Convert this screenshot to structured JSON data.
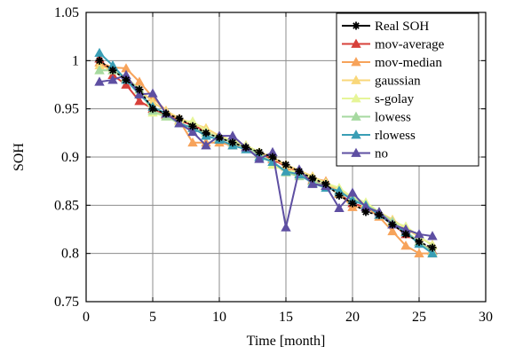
{
  "chart_data": {
    "type": "line",
    "title": "",
    "xlabel": "Time [month]",
    "ylabel": "SOH",
    "xlim": [
      0,
      30
    ],
    "ylim": [
      0.75,
      1.05
    ],
    "xticks": [
      0,
      5,
      10,
      15,
      20,
      25,
      30
    ],
    "yticks": [
      0.75,
      0.8,
      0.85,
      0.9,
      0.95,
      1,
      1.05
    ],
    "xtick_labels": [
      "0",
      "5",
      "10",
      "15",
      "20",
      "25",
      "30"
    ],
    "ytick_labels": [
      "0.75",
      "0.8",
      "0.85",
      "0.9",
      "0.95",
      "1",
      "1.05"
    ],
    "grid": true,
    "legend_position": "top-right",
    "x": [
      1,
      2,
      3,
      4,
      5,
      6,
      7,
      8,
      9,
      10,
      11,
      12,
      13,
      14,
      15,
      16,
      17,
      18,
      19,
      20,
      21,
      22,
      23,
      24,
      25,
      26
    ],
    "series": [
      {
        "name": "Real SOH",
        "color": "#000000",
        "marker": "star",
        "values": [
          1.0,
          0.99,
          0.98,
          0.97,
          0.95,
          0.945,
          0.94,
          0.932,
          0.925,
          0.92,
          0.915,
          0.91,
          0.905,
          0.9,
          0.892,
          0.885,
          0.878,
          0.872,
          0.86,
          0.852,
          0.843,
          0.84,
          0.83,
          0.82,
          0.812,
          0.806
        ]
      },
      {
        "name": "mov-average",
        "color": "#d7403a",
        "marker": "triangle",
        "values": [
          1.002,
          0.985,
          0.975,
          0.958,
          0.95,
          0.944,
          0.938,
          0.933,
          0.927,
          0.92,
          0.915,
          0.91,
          0.903,
          0.898,
          0.89,
          0.885,
          0.876,
          0.87,
          0.862,
          0.852,
          0.848,
          0.84,
          0.83,
          0.82,
          0.812,
          0.803
        ]
      },
      {
        "name": "mov-median",
        "color": "#f7a35a",
        "marker": "triangle",
        "values": [
          0.998,
          0.993,
          0.992,
          0.978,
          0.962,
          0.948,
          0.938,
          0.915,
          0.915,
          0.915,
          0.912,
          0.912,
          0.905,
          0.9,
          0.89,
          0.884,
          0.878,
          0.875,
          0.862,
          0.848,
          0.848,
          0.838,
          0.823,
          0.808,
          0.8,
          0.8
        ]
      },
      {
        "name": "gaussian",
        "color": "#f9d77a",
        "marker": "triangle",
        "values": [
          0.995,
          0.99,
          0.983,
          0.97,
          0.957,
          0.948,
          0.94,
          0.935,
          0.93,
          0.922,
          0.917,
          0.912,
          0.905,
          0.9,
          0.892,
          0.886,
          0.88,
          0.873,
          0.866,
          0.858,
          0.85,
          0.843,
          0.835,
          0.826,
          0.817,
          0.809
        ]
      },
      {
        "name": "s-golay",
        "color": "#e6f598",
        "marker": "triangle",
        "values": [
          0.99,
          0.99,
          0.98,
          0.97,
          0.946,
          0.942,
          0.937,
          0.937,
          0.927,
          0.92,
          0.918,
          0.912,
          0.905,
          0.892,
          0.885,
          0.885,
          0.878,
          0.873,
          0.868,
          0.858,
          0.853,
          0.843,
          0.833,
          0.828,
          0.818,
          0.808
        ]
      },
      {
        "name": "lowess",
        "color": "#a6d9a0",
        "marker": "triangle",
        "values": [
          0.99,
          0.99,
          0.982,
          0.97,
          0.948,
          0.942,
          0.935,
          0.93,
          0.925,
          0.92,
          0.915,
          0.91,
          0.903,
          0.895,
          0.884,
          0.88,
          0.875,
          0.87,
          0.863,
          0.857,
          0.85,
          0.843,
          0.833,
          0.823,
          0.812,
          0.802
        ]
      },
      {
        "name": "rlowess",
        "color": "#3a9eb5",
        "marker": "triangle",
        "values": [
          1.008,
          0.995,
          0.98,
          0.965,
          0.952,
          0.945,
          0.935,
          0.93,
          0.922,
          0.918,
          0.912,
          0.908,
          0.9,
          0.895,
          0.885,
          0.882,
          0.873,
          0.868,
          0.865,
          0.855,
          0.85,
          0.84,
          0.83,
          0.822,
          0.81,
          0.8
        ]
      },
      {
        "name": "no",
        "color": "#5e4fa2",
        "marker": "triangle",
        "values": [
          0.978,
          0.98,
          0.985,
          0.965,
          0.966,
          0.945,
          0.935,
          0.926,
          0.912,
          0.922,
          0.922,
          0.91,
          0.898,
          0.905,
          0.827,
          0.887,
          0.872,
          0.87,
          0.847,
          0.863,
          0.848,
          0.843,
          0.83,
          0.825,
          0.82,
          0.818
        ]
      }
    ]
  }
}
